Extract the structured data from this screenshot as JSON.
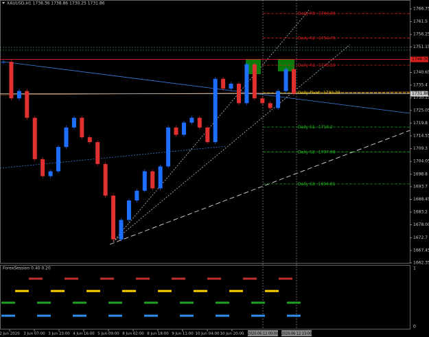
{
  "chart_data": {
    "type": "candlestick",
    "title": "XAUUSD,H1 1738.36 1738.86 1730.25 1731.86",
    "ylim": [
      1662.35,
      1766.75
    ],
    "yticks": [
      1766.75,
      1761.5,
      1756.25,
      1751.15,
      1740.65,
      1735.4,
      1730.15,
      1725.05,
      1719.8,
      1714.55,
      1709.3,
      1704.05,
      1698.8,
      1693.7,
      1688.45,
      1683.2,
      {
        "value": 1678,
        "label": "1678.00"
      },
      1672.7,
      1667.45,
      1662.35
    ],
    "marker_levels": [
      {
        "value": 1746,
        "label": "1746.00",
        "color": "#e02020"
      },
      {
        "value": 1731.86,
        "label": "1731.86",
        "color": "#c8c8c8"
      }
    ],
    "values": [
      1745,
      1730,
      1733,
      1722,
      1705,
      1698,
      1700,
      1710,
      1718,
      1722,
      1714,
      1712,
      1703,
      1690,
      1672,
      1680,
      1688,
      1692,
      1700,
      1693,
      1702,
      1718,
      1715,
      1720,
      1722,
      1718,
      1712,
      1738,
      1734,
      1736,
      1728,
      1744,
      1730,
      1728,
      1726,
      1733,
      1742,
      1731.86
    ],
    "up_color": "#1e6fff",
    "down_color": "#e03030",
    "pivots": [
      {
        "name": "Daily R3:",
        "value": 1764.85,
        "color": "#e02020"
      },
      {
        "name": "Daily R2:",
        "value": 1754.76,
        "color": "#e02020"
      },
      {
        "name": "Daily R1:",
        "value": 1743.59,
        "color": "#e02020"
      },
      {
        "name": "Daily Pivot:",
        "value": 1732.29,
        "color": "#ffd700"
      },
      {
        "name": "Daily S1:",
        "value": 1718.2,
        "color": "#20c020"
      },
      {
        "name": "Daily S2:",
        "value": 1707.98,
        "color": "#20c020"
      },
      {
        "name": "Daily S3:",
        "value": 1694.81,
        "color": "#20c020"
      }
    ],
    "time_labels": [
      "2 Jun 2020",
      "3 Jun 07:00",
      "3 Jun 23:00",
      "4 Jun 16:00",
      "5 Jun 09:00",
      "8 Jun 02:00",
      "8 Jun 18:00",
      "9 Jun 11:00",
      "10 Jun 04:00",
      "10 Jun 20:00"
    ],
    "cursor_labels": [
      "2020.06.12 00:00",
      "2020.06.12 23:00"
    ],
    "indicator": {
      "title": "ForexSession 0.40 0.20",
      "ticks": [
        1,
        0
      ]
    }
  }
}
